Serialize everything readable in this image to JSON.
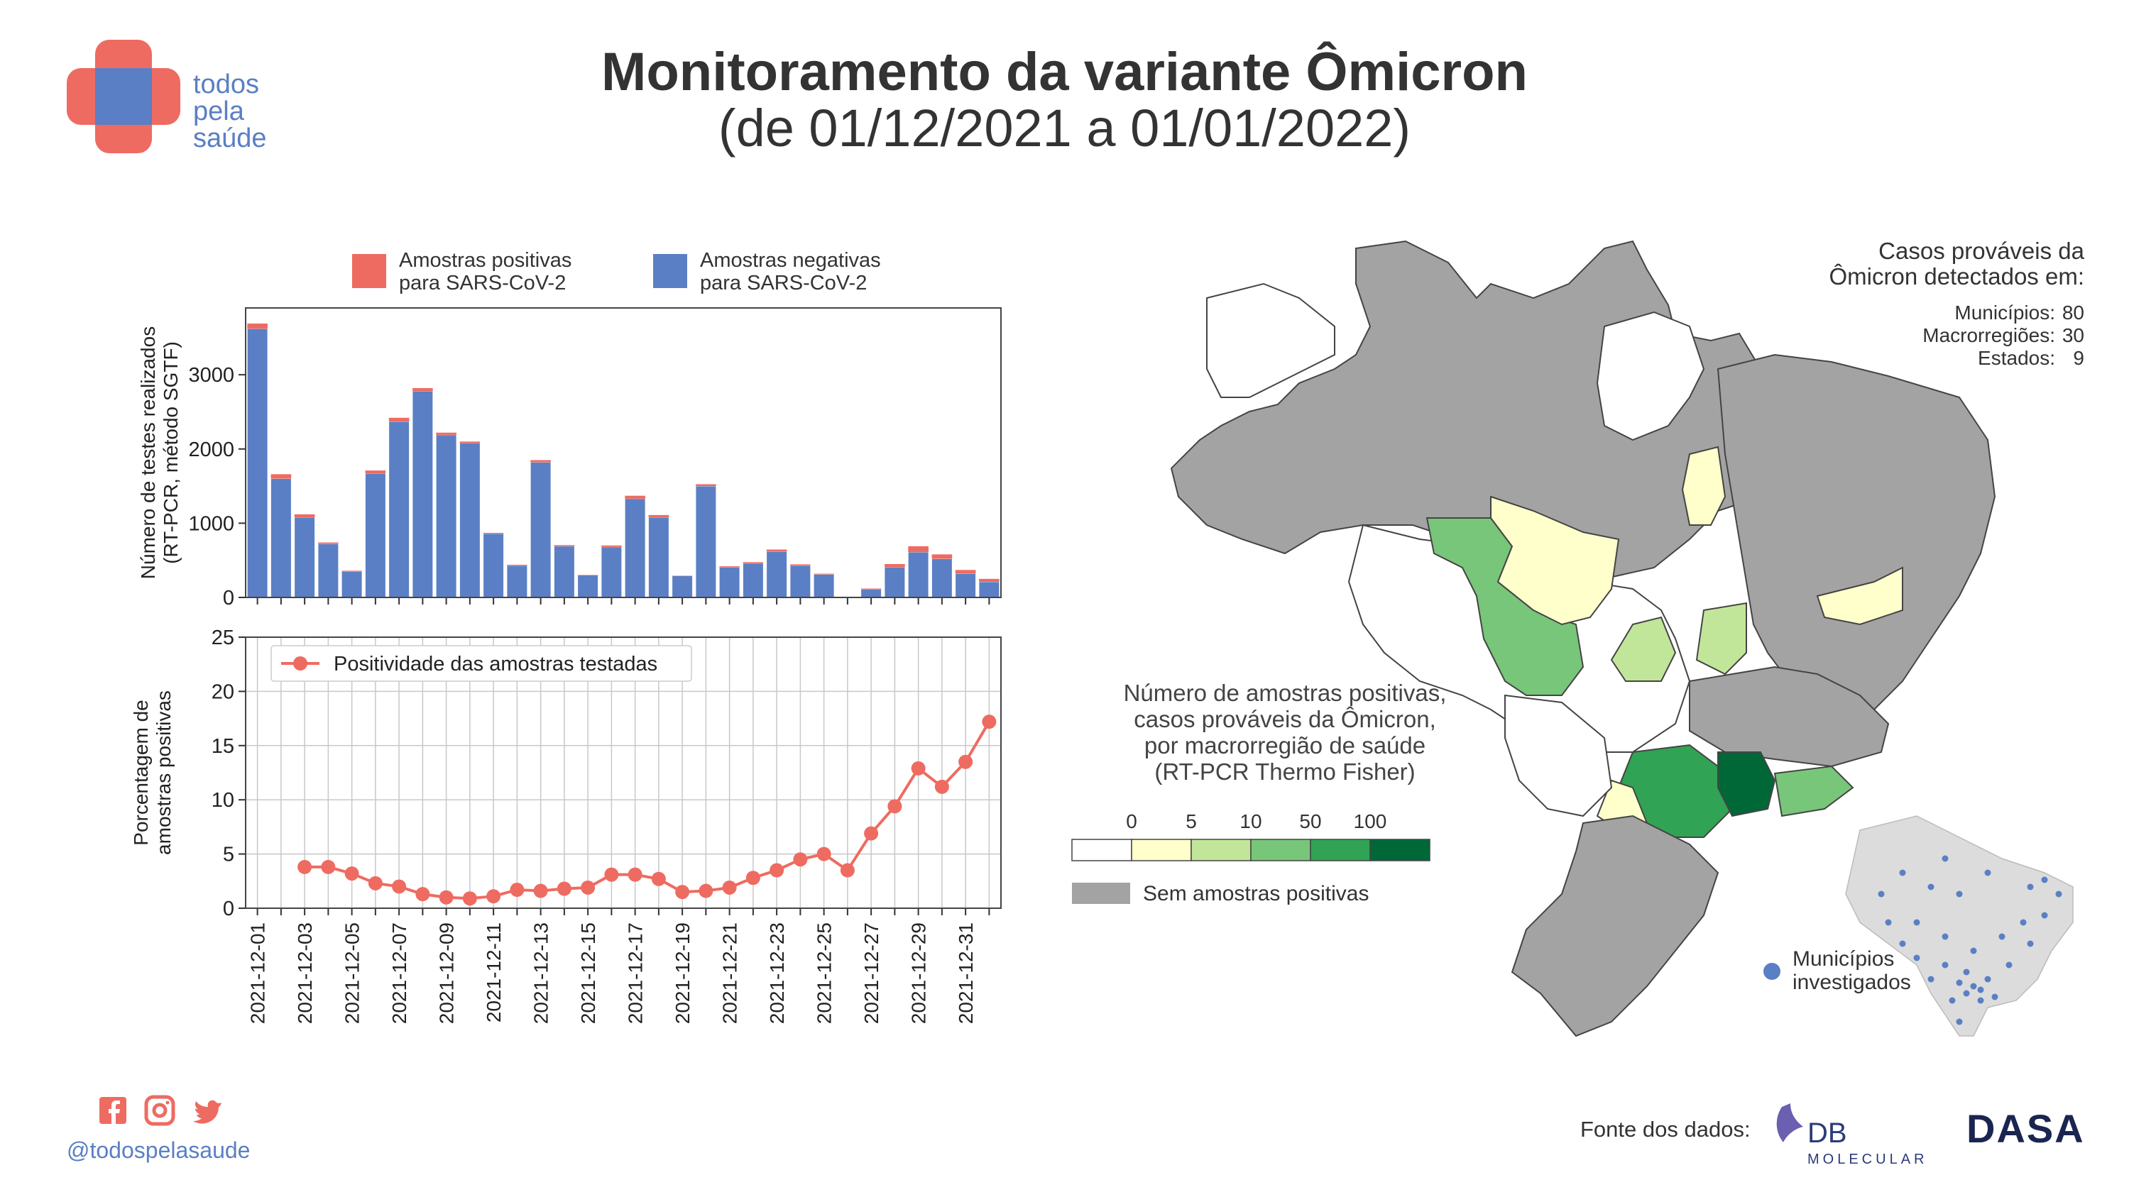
{
  "header": {
    "title": "Monitoramento da variante Ômicron",
    "subtitle": "(de 01/12/2021 a 01/01/2022)",
    "logo_lines": [
      "todos",
      "pela",
      "saúde"
    ]
  },
  "colors": {
    "positive": "#ee6b61",
    "negative": "#5a7fc4",
    "line": "#ee6b61",
    "gray_region": "#a3a3a3",
    "scale": [
      "#ffffff",
      "#ffffcc",
      "#c2e699",
      "#78c679",
      "#31a354",
      "#006837"
    ]
  },
  "footer": {
    "handle": "@todospelasaude",
    "social_icons": [
      "facebook-icon",
      "instagram-icon",
      "twitter-icon"
    ],
    "source_label": "Fonte dos dados:",
    "source_logos": [
      "DB MOLECULAR",
      "DASA"
    ]
  },
  "chart_data": [
    {
      "type": "bar",
      "stacked": true,
      "ylabel": "Número de testes realizados\n(RT-PCR, método SGTF)",
      "ylim": [
        0,
        3900
      ],
      "yticks": [
        0,
        1000,
        2000,
        3000
      ],
      "legend": [
        "Amostras positivas\npara SARS-CoV-2",
        "Amostras negativas\npara SARS-CoV-2"
      ],
      "legend_position": "top",
      "categories": [
        "2021-12-01",
        "2021-12-02",
        "2021-12-03",
        "2021-12-04",
        "2021-12-05",
        "2021-12-06",
        "2021-12-07",
        "2021-12-08",
        "2021-12-09",
        "2021-12-10",
        "2021-12-11",
        "2021-12-12",
        "2021-12-13",
        "2021-12-14",
        "2021-12-15",
        "2021-12-16",
        "2021-12-17",
        "2021-12-18",
        "2021-12-19",
        "2021-12-20",
        "2021-12-21",
        "2021-12-22",
        "2021-12-23",
        "2021-12-24",
        "2021-12-25",
        "2021-12-26",
        "2021-12-27",
        "2021-12-28",
        "2021-12-29",
        "2021-12-30",
        "2021-12-31",
        "2022-01-01"
      ],
      "series": [
        {
          "name": "Amostras negativas para SARS-CoV-2",
          "values": [
            3620,
            1600,
            1080,
            720,
            350,
            1670,
            2370,
            2780,
            2190,
            2080,
            860,
            430,
            1820,
            690,
            300,
            680,
            1330,
            1080,
            290,
            1500,
            410,
            460,
            620,
            430,
            310,
            0,
            110,
            410,
            610,
            520,
            320,
            210
          ]
        },
        {
          "name": "Amostras positivas para SARS-CoV-2",
          "values": [
            70,
            60,
            40,
            20,
            10,
            40,
            50,
            40,
            30,
            20,
            10,
            10,
            30,
            15,
            5,
            20,
            40,
            30,
            5,
            25,
            10,
            15,
            25,
            15,
            10,
            0,
            10,
            40,
            80,
            60,
            50,
            40
          ]
        }
      ]
    },
    {
      "type": "line",
      "ylabel": "Porcentagem de\namostras positivas",
      "ylim": [
        0,
        25
      ],
      "yticks": [
        0,
        5,
        10,
        15,
        20,
        25
      ],
      "legend": [
        "Positividade das amostras testadas"
      ],
      "legend_position": "top-left",
      "grid": true,
      "xticklabels": [
        "2021-12-01",
        "2021-12-03",
        "2021-12-05",
        "2021-12-07",
        "2021-12-09",
        "2021-12-11",
        "2021-12-13",
        "2021-12-15",
        "2021-12-17",
        "2021-12-19",
        "2021-12-21",
        "2021-12-23",
        "2021-12-25",
        "2021-12-27",
        "2021-12-29",
        "2021-12-31"
      ],
      "x": [
        "2021-12-03",
        "2021-12-04",
        "2021-12-05",
        "2021-12-06",
        "2021-12-07",
        "2021-12-08",
        "2021-12-09",
        "2021-12-10",
        "2021-12-11",
        "2021-12-12",
        "2021-12-13",
        "2021-12-14",
        "2021-12-15",
        "2021-12-16",
        "2021-12-17",
        "2021-12-18",
        "2021-12-19",
        "2021-12-20",
        "2021-12-21",
        "2021-12-22",
        "2021-12-23",
        "2021-12-24",
        "2021-12-25",
        "2021-12-26",
        "2021-12-27",
        "2021-12-28",
        "2021-12-29",
        "2021-12-30",
        "2021-12-31",
        "2022-01-01"
      ],
      "y": [
        3.8,
        3.8,
        3.2,
        2.3,
        2.0,
        1.3,
        1.0,
        0.9,
        1.1,
        1.7,
        1.6,
        1.8,
        1.9,
        3.1,
        3.1,
        2.7,
        1.5,
        1.6,
        1.9,
        2.8,
        3.5,
        4.5,
        5.0,
        3.5,
        6.9,
        9.4,
        12.9,
        11.2,
        13.5,
        17.2
      ]
    },
    {
      "type": "map",
      "region": "Brasil, macrorregiões de saúde",
      "summary_title": "Casos prováveis da\nÔmicron detectados em:",
      "summary": [
        {
          "label": "Municípios:",
          "value": "80"
        },
        {
          "label": "Macrorregiões:",
          "value": "30"
        },
        {
          "label": "Estados:",
          "value": "9"
        }
      ],
      "legend_title": "Número de amostras positivas,\ncasos prováveis da Ômicron,\npor macrorregião de saúde\n(RT-PCR Thermo Fisher)",
      "legend_bins": [
        "0",
        "5",
        "10",
        "50",
        "100"
      ],
      "no_data_label": "Sem amostras positivas",
      "inset_label": "Municípios\ninvestigados"
    }
  ]
}
